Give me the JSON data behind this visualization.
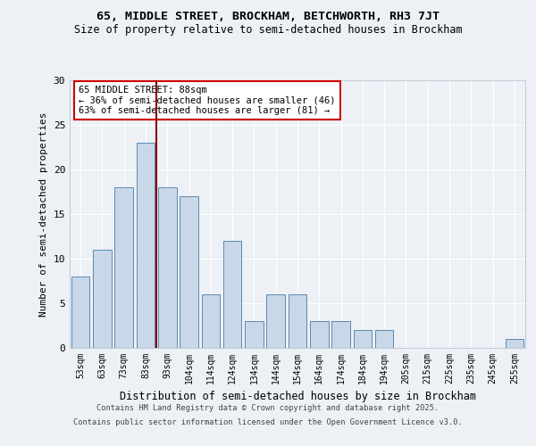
{
  "title1": "65, MIDDLE STREET, BROCKHAM, BETCHWORTH, RH3 7JT",
  "title2": "Size of property relative to semi-detached houses in Brockham",
  "xlabel": "Distribution of semi-detached houses by size in Brockham",
  "ylabel": "Number of semi-detached properties",
  "categories": [
    "53sqm",
    "63sqm",
    "73sqm",
    "83sqm",
    "93sqm",
    "104sqm",
    "114sqm",
    "124sqm",
    "134sqm",
    "144sqm",
    "154sqm",
    "164sqm",
    "174sqm",
    "184sqm",
    "194sqm",
    "205sqm",
    "215sqm",
    "225sqm",
    "235sqm",
    "245sqm",
    "255sqm"
  ],
  "values": [
    8,
    11,
    18,
    23,
    18,
    17,
    6,
    12,
    3,
    6,
    6,
    3,
    3,
    2,
    2,
    0,
    0,
    0,
    0,
    0,
    1
  ],
  "bar_color": "#c8d8e8",
  "bar_edge_color": "#5a8ab0",
  "property_line_idx": 3,
  "property_line_color": "#8b0000",
  "annotation_text": "65 MIDDLE STREET: 88sqm\n← 36% of semi-detached houses are smaller (46)\n63% of semi-detached houses are larger (81) →",
  "annotation_box_color": "#ffffff",
  "annotation_box_edge": "#cc0000",
  "ylim": [
    0,
    30
  ],
  "yticks": [
    0,
    5,
    10,
    15,
    20,
    25,
    30
  ],
  "background_color": "#edf0f5",
  "grid_color": "#ffffff",
  "footer_line1": "Contains HM Land Registry data © Crown copyright and database right 2025.",
  "footer_line2": "Contains public sector information licensed under the Open Government Licence v3.0."
}
